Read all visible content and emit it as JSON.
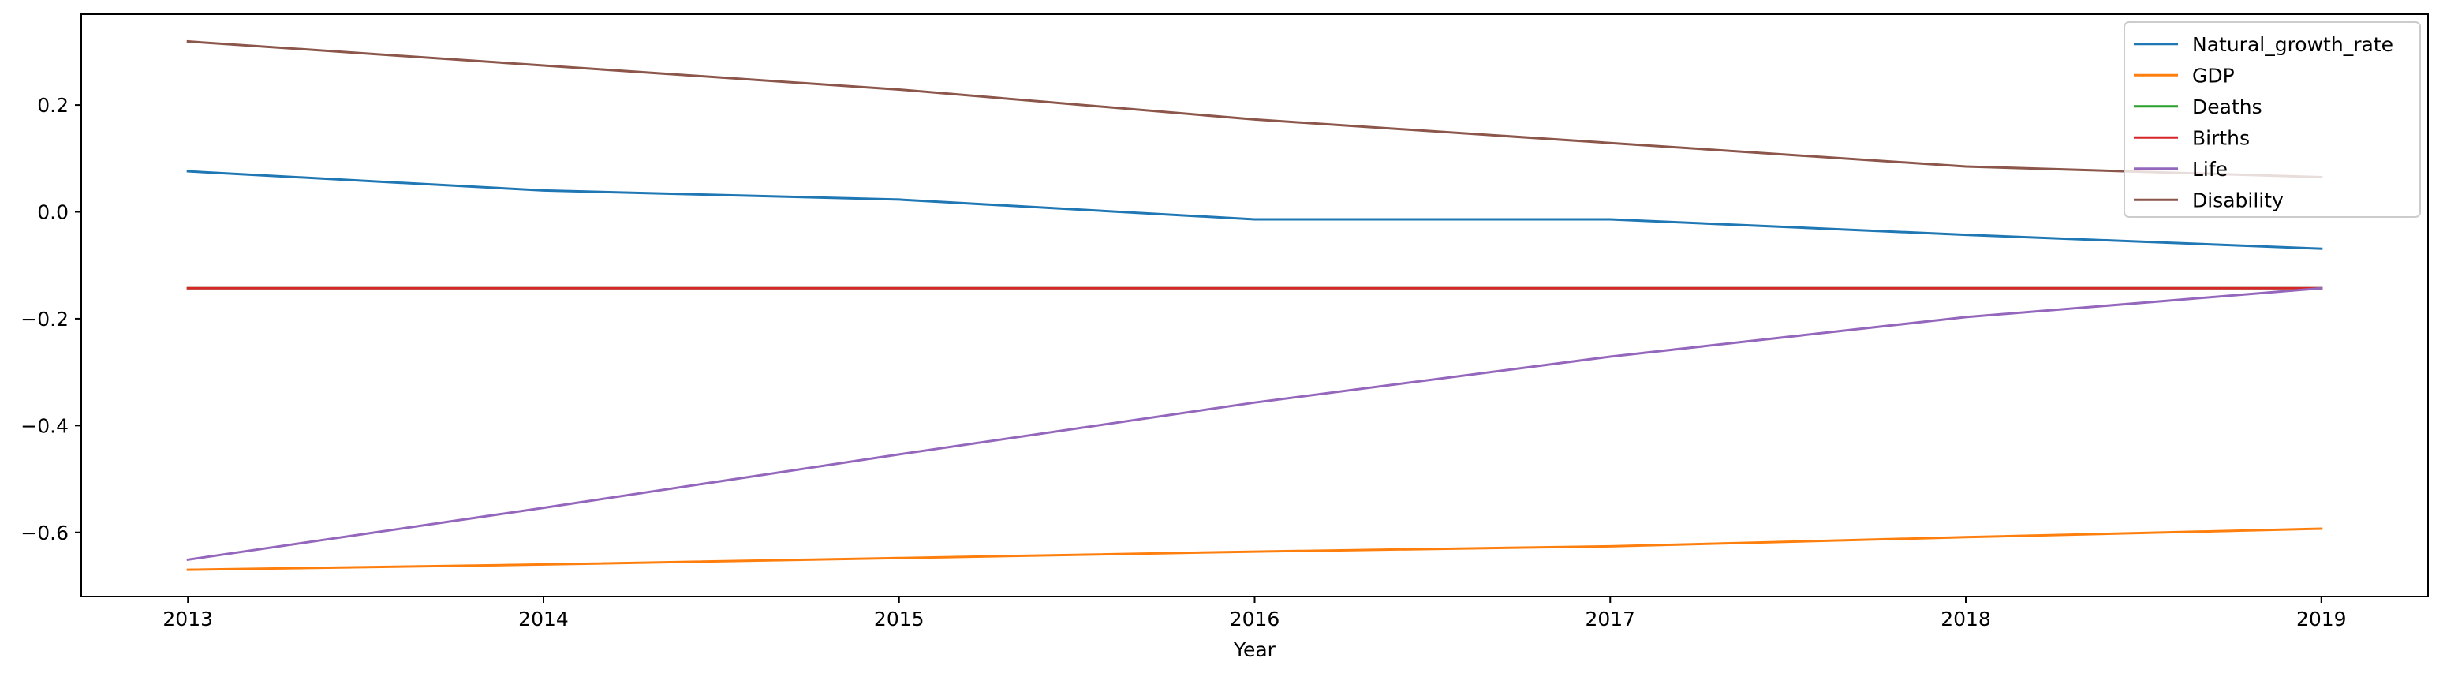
{
  "chart_data": {
    "type": "line",
    "title": "",
    "xlabel": "Year",
    "ylabel": "",
    "x": [
      "2013",
      "2014",
      "2015",
      "2016",
      "2017",
      "2018",
      "2019"
    ],
    "xlim": [
      2012.7,
      2019.3
    ],
    "ylim": [
      -0.72,
      0.37
    ],
    "yticks": [
      -0.6,
      -0.4,
      -0.2,
      0.0,
      0.2
    ],
    "ytick_labels": [
      "−0.6",
      "−0.4",
      "−0.2",
      "0.0",
      "0.2"
    ],
    "grid": false,
    "legend_position": "top-right",
    "series": [
      {
        "name": "Natural_growth_rate",
        "color": "#1f77b4",
        "values": [
          0.076,
          0.04,
          0.023,
          -0.014,
          -0.014,
          -0.043,
          -0.069
        ]
      },
      {
        "name": "GDP",
        "color": "#ff7f0e",
        "values": [
          -0.67,
          -0.66,
          -0.648,
          -0.636,
          -0.626,
          -0.609,
          -0.593
        ]
      },
      {
        "name": "Deaths",
        "color": "#2ca02c",
        "values": [
          -0.143,
          -0.143,
          -0.143,
          -0.143,
          -0.143,
          -0.143,
          -0.143
        ]
      },
      {
        "name": "Births",
        "color": "#d62728",
        "values": [
          -0.143,
          -0.143,
          -0.143,
          -0.143,
          -0.143,
          -0.143,
          -0.143
        ]
      },
      {
        "name": "Life",
        "color": "#9467bd",
        "values": [
          -0.651,
          -0.554,
          -0.454,
          -0.357,
          -0.271,
          -0.197,
          -0.143
        ]
      },
      {
        "name": "Disability",
        "color": "#8c564b",
        "values": [
          0.319,
          0.274,
          0.229,
          0.173,
          0.129,
          0.085,
          0.065
        ]
      }
    ]
  }
}
